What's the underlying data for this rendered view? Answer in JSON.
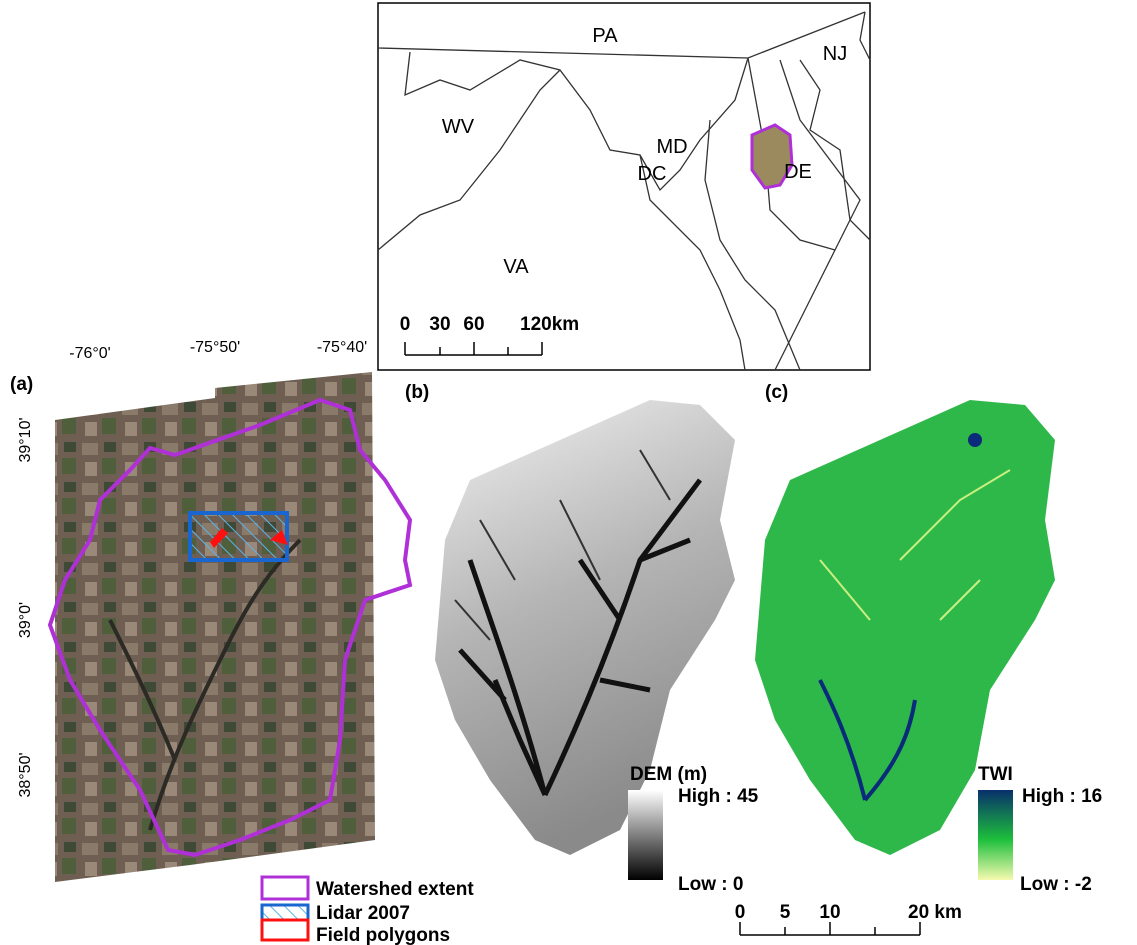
{
  "inset_map": {
    "state_labels": [
      "PA",
      "WV",
      "MD",
      "DC",
      "DE",
      "NJ",
      "VA"
    ],
    "scale_labels": [
      "0",
      "30",
      "60",
      "120km"
    ]
  },
  "panel_labels": [
    "(a)",
    "(b)",
    "(c)"
  ],
  "longitude_labels": [
    "-76°0'",
    "-75°50'",
    "-75°40'"
  ],
  "latitude_labels": [
    "39°10'",
    "39°0'",
    "38°50'"
  ],
  "legend": [
    "Watershed extent",
    "Lidar 2007",
    "Field polygons"
  ],
  "dem_legend": {
    "title": "DEM (m)",
    "high": "High : 45",
    "low": "Low : 0"
  },
  "twi_legend": {
    "title": "TWI",
    "high": "High : 16",
    "low": "Low : -2"
  },
  "scale_bar": [
    "0",
    "5",
    "10",
    "20 km"
  ]
}
